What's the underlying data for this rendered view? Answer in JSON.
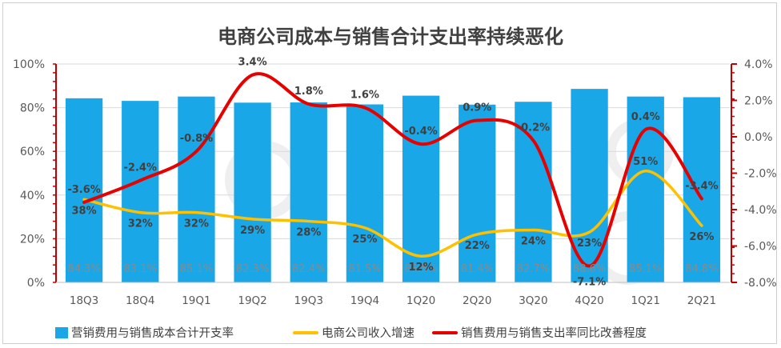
{
  "chart_data": {
    "type": "bar",
    "title": "电商公司成本与销售合计支出率持续恶化",
    "categories": [
      "18Q3",
      "18Q4",
      "19Q1",
      "19Q2",
      "19Q3",
      "19Q4",
      "1Q20",
      "2Q20",
      "3Q20",
      "4Q20",
      "1Q21",
      "2Q21"
    ],
    "y_left": {
      "ylim": [
        0,
        100
      ],
      "ticks": [
        "0%",
        "20%",
        "40%",
        "60%",
        "80%",
        "100%"
      ]
    },
    "y_right": {
      "ylim": [
        -8,
        4
      ],
      "ticks": [
        "-8.0%",
        "-6.0%",
        "-4.0%",
        "-2.0%",
        "0.0%",
        "2.0%",
        "4.0%"
      ]
    },
    "series": [
      {
        "name": "营销费用与销售成本合计开支率",
        "type": "bar",
        "axis": "left",
        "color": "#1aa7e8",
        "values": [
          84.3,
          83.1,
          85.1,
          82.3,
          82.4,
          81.5,
          85.5,
          81.4,
          82.7,
          88.6,
          85.1,
          84.8
        ],
        "labels": [
          "84.3%",
          "83.1%",
          "85.1%",
          "82.3%",
          "82.4%",
          "81.5%",
          "85.5%",
          "81.4%",
          "82.7%",
          "88.6%",
          "85.1%",
          "84.8%"
        ]
      },
      {
        "name": "电商公司收入增速",
        "type": "line",
        "axis": "left",
        "color": "#ffc000",
        "values": [
          38,
          32,
          32,
          29,
          28,
          25,
          12,
          22,
          24,
          23,
          51,
          26
        ],
        "labels": [
          "38%",
          "32%",
          "32%",
          "29%",
          "28%",
          "25%",
          "12%",
          "22%",
          "24%",
          "23%",
          "51%",
          "26%"
        ]
      },
      {
        "name": "销售费用与销售支出率同比改善程度",
        "type": "line",
        "axis": "right",
        "color": "#e60000",
        "values": [
          -3.6,
          -2.4,
          -0.8,
          3.4,
          1.8,
          1.6,
          -0.4,
          0.9,
          -0.2,
          -7.1,
          0.4,
          -3.4
        ],
        "labels": [
          "-3.6%",
          "-2.4%",
          "-0.8%",
          "3.4%",
          "1.8%",
          "1.6%",
          "-0.4%",
          "0.9%",
          "-0.2%",
          "-7.1%",
          "0.4%",
          "-3.4%"
        ]
      }
    ],
    "grid": true,
    "legend_position": "bottom"
  }
}
